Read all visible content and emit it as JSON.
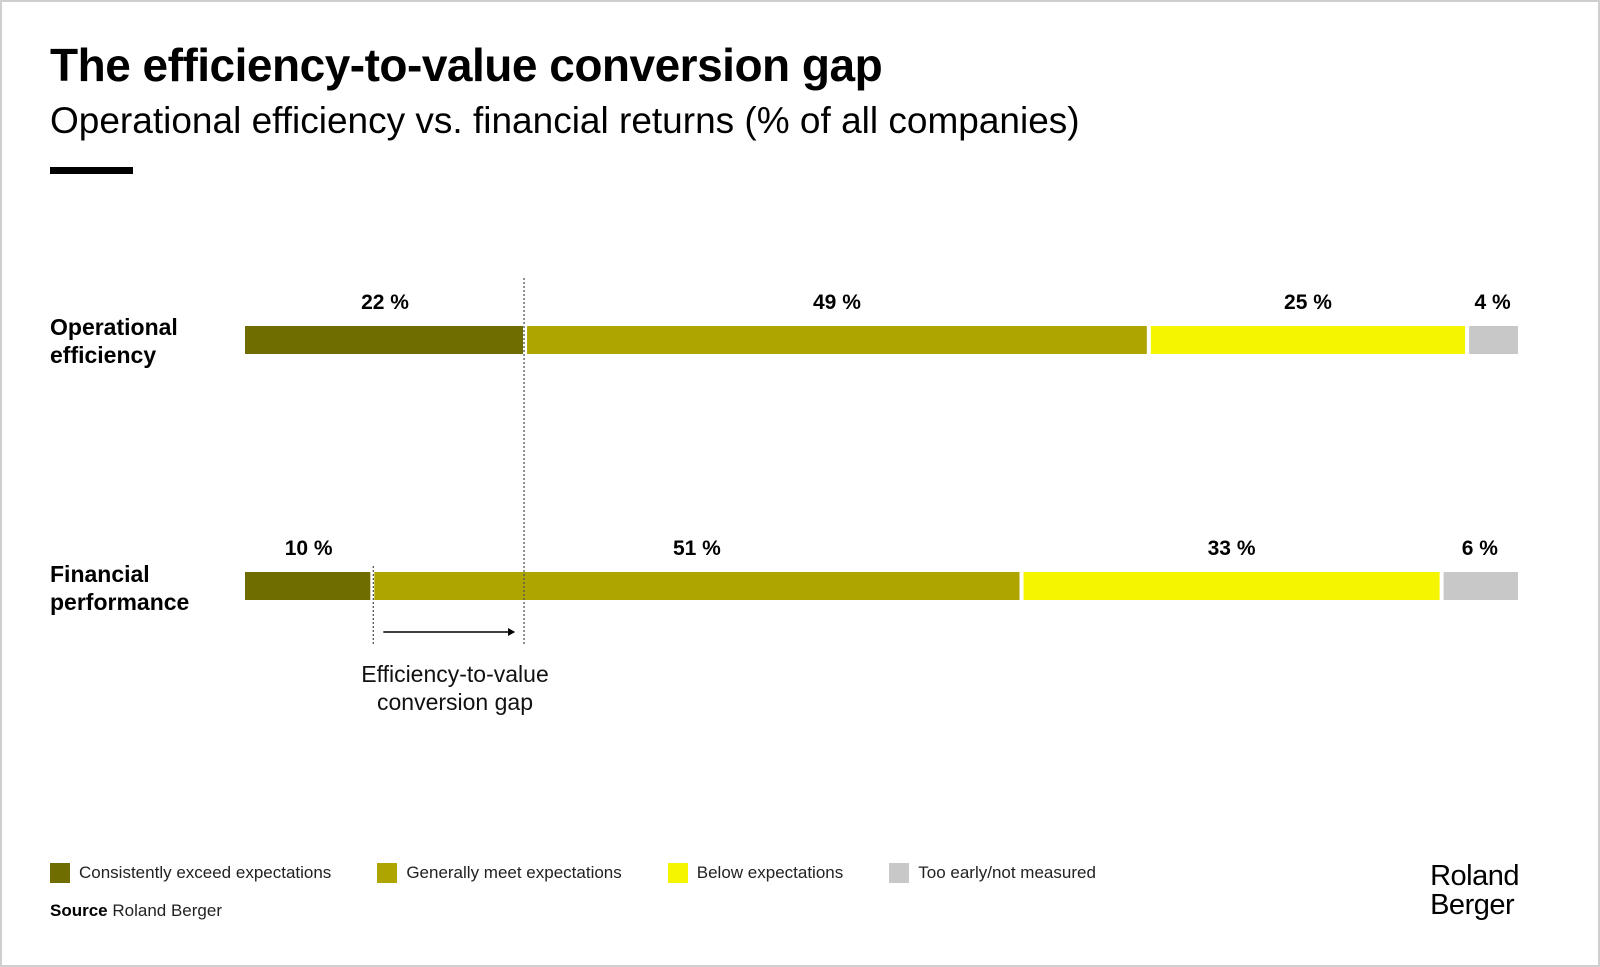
{
  "header": {
    "title": "The efficiency-to-value conversion gap",
    "subtitle": "Operational efficiency vs. financial returns (% of all companies)"
  },
  "chart_data": {
    "type": "bar",
    "orientation": "horizontal-stacked-100",
    "title": "The efficiency-to-value conversion gap",
    "subtitle": "Operational efficiency vs. financial returns (% of all companies)",
    "unit": "%",
    "categories": [
      "Operational efficiency",
      "Financial performance"
    ],
    "series": [
      {
        "name": "Consistently exceed expectations",
        "color": "#6f6c00",
        "values": [
          22,
          10
        ]
      },
      {
        "name": "Generally meet expectations",
        "color": "#afa500",
        "values": [
          49,
          51
        ]
      },
      {
        "name": "Below expectations",
        "color": "#f5f500",
        "values": [
          25,
          33
        ]
      },
      {
        "name": "Too early/not measured",
        "color": "#c8c8c8",
        "values": [
          4,
          6
        ]
      }
    ],
    "xlim": [
      0,
      100
    ],
    "legend_position": "bottom-left",
    "annotations": [
      {
        "text": "Efficiency-to-value conversion gap",
        "from_value": 10,
        "to_value": 22,
        "style": "dotted reference lines with right-pointing arrow"
      }
    ]
  },
  "rows": [
    {
      "label_line1": "Operational",
      "label_line2": "efficiency"
    },
    {
      "label_line1": "Financial",
      "label_line2": "performance"
    }
  ],
  "annotation": {
    "line1": "Efficiency-to-value",
    "line2": "conversion gap"
  },
  "legend": [
    {
      "label": "Consistently exceed expectations",
      "color": "#6f6c00"
    },
    {
      "label": "Generally meet expectations",
      "color": "#afa500"
    },
    {
      "label": "Below expectations",
      "color": "#f5f500"
    },
    {
      "label": "Too early/not measured",
      "color": "#c8c8c8"
    }
  ],
  "footer": {
    "source_label": "Source",
    "source_value": "Roland Berger",
    "logo_line1": "Roland",
    "logo_line2": "Berger"
  }
}
